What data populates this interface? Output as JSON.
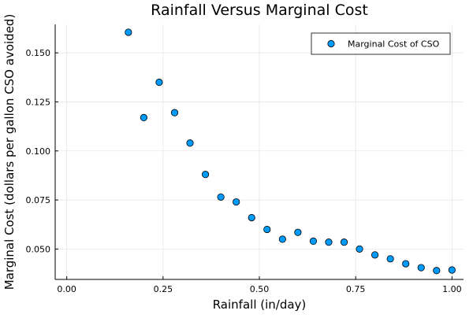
{
  "chart_data": {
    "type": "scatter",
    "title": "Rainfall Versus Marginal Cost",
    "xlabel": "Rainfall (in/day)",
    "ylabel": "Marginal Cost (dollars per gallon CSO avoided)",
    "xlim": [
      -0.03,
      1.03
    ],
    "ylim": [
      0.0345,
      0.1645
    ],
    "xticks": [
      0.0,
      0.25,
      0.5,
      0.75,
      1.0
    ],
    "xtick_labels": [
      "0.00",
      "0.25",
      "0.50",
      "0.75",
      "1.00"
    ],
    "yticks": [
      0.05,
      0.075,
      0.1,
      0.125,
      0.15
    ],
    "ytick_labels": [
      "0.050",
      "0.075",
      "0.100",
      "0.125",
      "0.150"
    ],
    "grid": true,
    "legend_position": "top-right",
    "series": [
      {
        "name": "Marginal Cost of CSO",
        "color": "#009af9",
        "x": [
          0.16,
          0.2,
          0.24,
          0.28,
          0.32,
          0.36,
          0.4,
          0.44,
          0.48,
          0.52,
          0.56,
          0.6,
          0.64,
          0.68,
          0.72,
          0.76,
          0.8,
          0.84,
          0.88,
          0.92,
          0.96,
          1.0
        ],
        "y": [
          0.1605,
          0.117,
          0.135,
          0.1195,
          0.104,
          0.088,
          0.0765,
          0.074,
          0.066,
          0.06,
          0.055,
          0.0585,
          0.054,
          0.0535,
          0.0535,
          0.05,
          0.047,
          0.045,
          0.0425,
          0.0405,
          0.039,
          0.0393
        ]
      }
    ]
  }
}
